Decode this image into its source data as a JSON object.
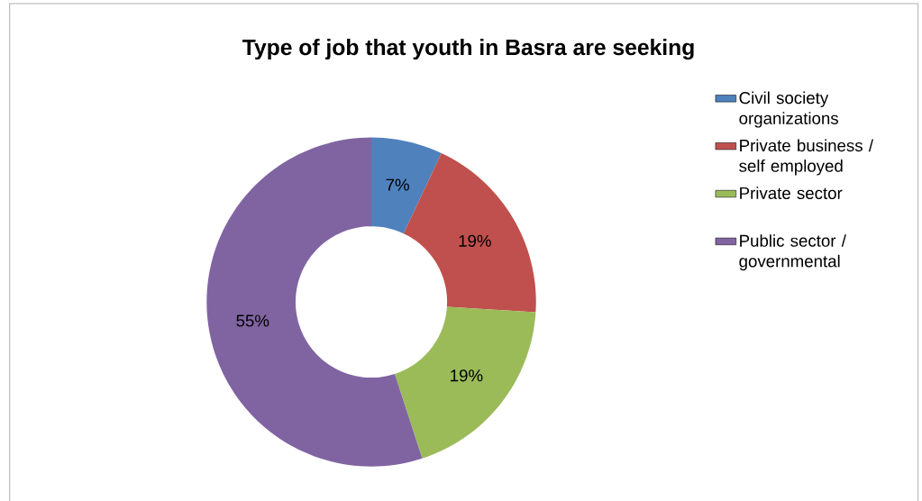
{
  "chart_data": {
    "type": "donut",
    "title": "Type of job that youth in Basra are seeking",
    "categories": [
      "Civil society organizations",
      "Private business / self employed",
      "Private sector",
      "Public sector / governmental"
    ],
    "values": [
      7,
      19,
      19,
      55
    ],
    "colors": [
      "#4f81bd",
      "#c0504d",
      "#9bbb59",
      "#8064a2"
    ],
    "value_labels": [
      "7%",
      "19%",
      "19%",
      "55%"
    ],
    "legend": "right"
  }
}
